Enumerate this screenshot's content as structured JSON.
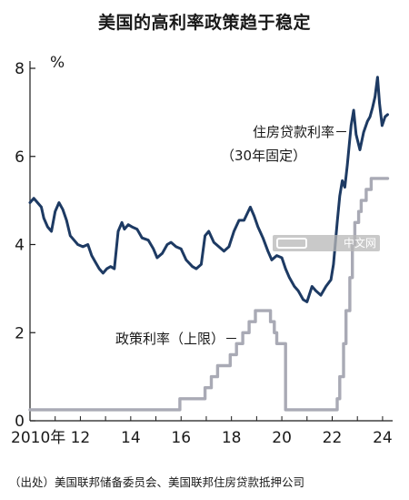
{
  "chart_data": {
    "type": "line",
    "title": "美国的高利率政策趋于稳定",
    "ylabel": "%",
    "ylim": [
      0,
      8
    ],
    "yticks": [
      "0",
      "2",
      "4",
      "6",
      "8"
    ],
    "xlim": [
      2010,
      2024.4
    ],
    "xticks": [
      {
        "value": 2010,
        "label": "2010年"
      },
      {
        "value": 2012,
        "label": "12"
      },
      {
        "value": 2014,
        "label": "14"
      },
      {
        "value": 2016,
        "label": "16"
      },
      {
        "value": 2018,
        "label": "18"
      },
      {
        "value": 2020,
        "label": "20"
      },
      {
        "value": 2022,
        "label": "22"
      },
      {
        "value": 2024,
        "label": "24"
      }
    ],
    "grid": false,
    "series": [
      {
        "name": "住房贷款利率（30年固定）",
        "color": "#1d3a63",
        "points": [
          [
            2010.0,
            4.95
          ],
          [
            2010.15,
            5.05
          ],
          [
            2010.3,
            4.95
          ],
          [
            2010.45,
            4.85
          ],
          [
            2010.55,
            4.6
          ],
          [
            2010.7,
            4.4
          ],
          [
            2010.85,
            4.3
          ],
          [
            2011.0,
            4.75
          ],
          [
            2011.15,
            4.95
          ],
          [
            2011.3,
            4.8
          ],
          [
            2011.45,
            4.55
          ],
          [
            2011.6,
            4.2
          ],
          [
            2011.75,
            4.1
          ],
          [
            2011.9,
            4.0
          ],
          [
            2012.1,
            3.95
          ],
          [
            2012.3,
            4.0
          ],
          [
            2012.45,
            3.75
          ],
          [
            2012.6,
            3.6
          ],
          [
            2012.75,
            3.45
          ],
          [
            2012.9,
            3.35
          ],
          [
            2013.05,
            3.45
          ],
          [
            2013.2,
            3.5
          ],
          [
            2013.35,
            3.45
          ],
          [
            2013.5,
            4.3
          ],
          [
            2013.65,
            4.5
          ],
          [
            2013.75,
            4.35
          ],
          [
            2013.9,
            4.45
          ],
          [
            2014.05,
            4.4
          ],
          [
            2014.25,
            4.35
          ],
          [
            2014.45,
            4.15
          ],
          [
            2014.7,
            4.1
          ],
          [
            2014.9,
            3.9
          ],
          [
            2015.05,
            3.7
          ],
          [
            2015.25,
            3.8
          ],
          [
            2015.45,
            4.0
          ],
          [
            2015.6,
            4.05
          ],
          [
            2015.8,
            3.95
          ],
          [
            2016.0,
            3.9
          ],
          [
            2016.2,
            3.65
          ],
          [
            2016.45,
            3.5
          ],
          [
            2016.6,
            3.45
          ],
          [
            2016.8,
            3.55
          ],
          [
            2016.95,
            4.2
          ],
          [
            2017.1,
            4.3
          ],
          [
            2017.3,
            4.05
          ],
          [
            2017.5,
            3.95
          ],
          [
            2017.7,
            3.85
          ],
          [
            2017.9,
            3.95
          ],
          [
            2018.1,
            4.3
          ],
          [
            2018.3,
            4.55
          ],
          [
            2018.5,
            4.55
          ],
          [
            2018.75,
            4.85
          ],
          [
            2018.9,
            4.65
          ],
          [
            2019.05,
            4.4
          ],
          [
            2019.25,
            4.15
          ],
          [
            2019.45,
            3.85
          ],
          [
            2019.6,
            3.65
          ],
          [
            2019.8,
            3.75
          ],
          [
            2020.0,
            3.7
          ],
          [
            2020.15,
            3.45
          ],
          [
            2020.3,
            3.25
          ],
          [
            2020.5,
            3.05
          ],
          [
            2020.65,
            2.95
          ],
          [
            2020.85,
            2.75
          ],
          [
            2021.0,
            2.7
          ],
          [
            2021.2,
            3.05
          ],
          [
            2021.35,
            2.95
          ],
          [
            2021.55,
            2.85
          ],
          [
            2021.75,
            3.05
          ],
          [
            2021.95,
            3.2
          ],
          [
            2022.05,
            3.55
          ],
          [
            2022.2,
            4.5
          ],
          [
            2022.3,
            5.1
          ],
          [
            2022.4,
            5.45
          ],
          [
            2022.5,
            5.3
          ],
          [
            2022.6,
            5.8
          ],
          [
            2022.75,
            6.7
          ],
          [
            2022.85,
            7.05
          ],
          [
            2022.95,
            6.5
          ],
          [
            2023.1,
            6.15
          ],
          [
            2023.25,
            6.55
          ],
          [
            2023.4,
            6.8
          ],
          [
            2023.5,
            6.9
          ],
          [
            2023.6,
            7.1
          ],
          [
            2023.7,
            7.35
          ],
          [
            2023.8,
            7.8
          ],
          [
            2023.88,
            7.2
          ],
          [
            2023.98,
            6.7
          ],
          [
            2024.1,
            6.9
          ],
          [
            2024.2,
            6.95
          ]
        ]
      },
      {
        "name": "政策利率（上限）",
        "color": "#a9aab5",
        "points": [
          [
            2010.0,
            0.25
          ],
          [
            2015.95,
            0.25
          ],
          [
            2015.95,
            0.5
          ],
          [
            2016.95,
            0.5
          ],
          [
            2016.95,
            0.75
          ],
          [
            2017.2,
            0.75
          ],
          [
            2017.2,
            1.0
          ],
          [
            2017.45,
            1.0
          ],
          [
            2017.45,
            1.25
          ],
          [
            2017.95,
            1.25
          ],
          [
            2017.95,
            1.5
          ],
          [
            2018.2,
            1.5
          ],
          [
            2018.2,
            1.75
          ],
          [
            2018.45,
            1.75
          ],
          [
            2018.45,
            2.0
          ],
          [
            2018.7,
            2.0
          ],
          [
            2018.7,
            2.25
          ],
          [
            2018.95,
            2.25
          ],
          [
            2018.95,
            2.5
          ],
          [
            2019.55,
            2.5
          ],
          [
            2019.55,
            2.25
          ],
          [
            2019.7,
            2.25
          ],
          [
            2019.7,
            2.0
          ],
          [
            2019.8,
            2.0
          ],
          [
            2019.8,
            1.75
          ],
          [
            2020.15,
            1.75
          ],
          [
            2020.15,
            0.25
          ],
          [
            2022.2,
            0.25
          ],
          [
            2022.2,
            0.5
          ],
          [
            2022.3,
            0.5
          ],
          [
            2022.3,
            1.0
          ],
          [
            2022.45,
            1.0
          ],
          [
            2022.45,
            1.75
          ],
          [
            2022.55,
            1.75
          ],
          [
            2022.55,
            2.5
          ],
          [
            2022.7,
            2.5
          ],
          [
            2022.7,
            3.25
          ],
          [
            2022.8,
            3.25
          ],
          [
            2022.8,
            4.0
          ],
          [
            2022.9,
            4.0
          ],
          [
            2022.9,
            4.5
          ],
          [
            2023.05,
            4.5
          ],
          [
            2023.05,
            4.75
          ],
          [
            2023.15,
            4.75
          ],
          [
            2023.15,
            5.0
          ],
          [
            2023.35,
            5.0
          ],
          [
            2023.35,
            5.25
          ],
          [
            2023.55,
            5.25
          ],
          [
            2023.55,
            5.5
          ],
          [
            2024.2,
            5.5
          ]
        ]
      }
    ],
    "annotations": [
      {
        "lines": [
          "住房贷款利率－",
          "（30年固定）"
        ],
        "series": 0
      },
      {
        "lines": [
          "政策利率（上限）－"
        ],
        "series": 1
      }
    ]
  },
  "source": "（出处）美国联邦储备委员会、美国联邦住房贷款抵押公司",
  "watermark": "中文网"
}
